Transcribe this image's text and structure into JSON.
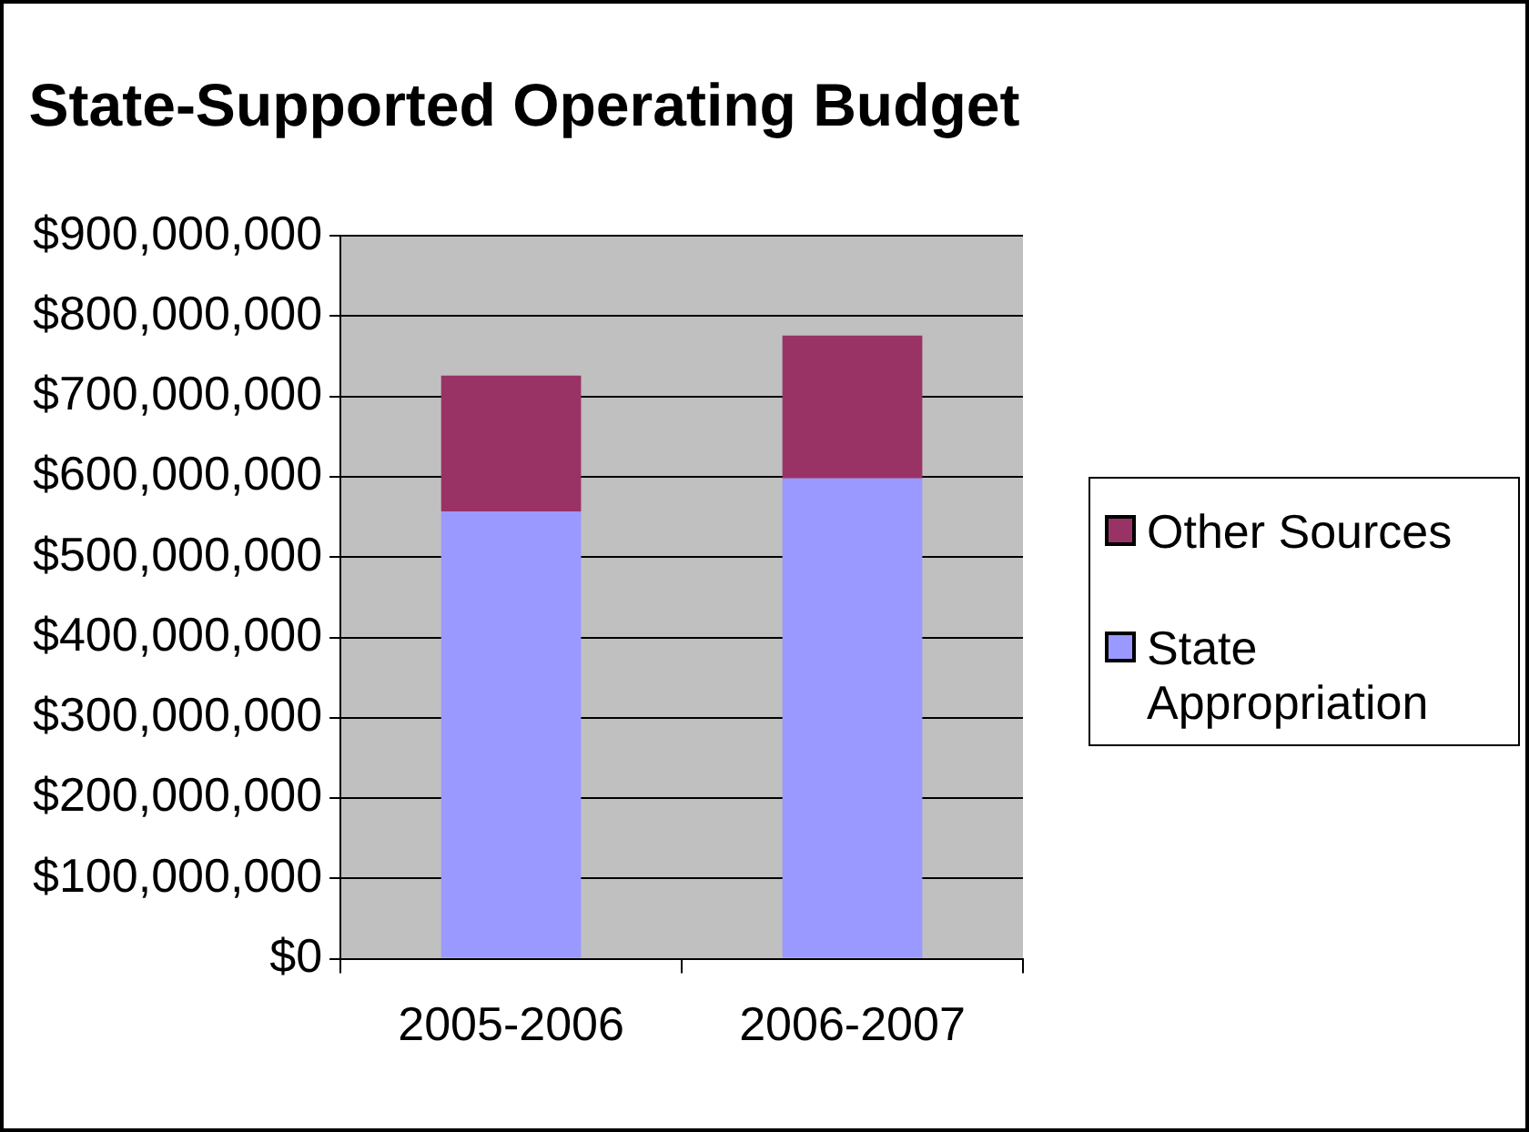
{
  "chart_data": {
    "type": "bar",
    "title": "State-Supported Operating Budget",
    "categories": [
      "2005-2006",
      "2006-2007"
    ],
    "series": [
      {
        "name": "State Appropriation",
        "color": "#9999ff",
        "values": [
          557000000,
          598000000
        ]
      },
      {
        "name": "Other Sources",
        "color": "#993366",
        "values": [
          169000000,
          178000000
        ]
      }
    ],
    "stacked": true,
    "ylim": [
      0,
      900000000
    ],
    "yticks": [
      {
        "value": 0,
        "label": "$0"
      },
      {
        "value": 100000000,
        "label": "$100,000,000"
      },
      {
        "value": 200000000,
        "label": "$200,000,000"
      },
      {
        "value": 300000000,
        "label": "$300,000,000"
      },
      {
        "value": 400000000,
        "label": "$400,000,000"
      },
      {
        "value": 500000000,
        "label": "$500,000,000"
      },
      {
        "value": 600000000,
        "label": "$600,000,000"
      },
      {
        "value": 700000000,
        "label": "$700,000,000"
      },
      {
        "value": 800000000,
        "label": "$800,000,000"
      },
      {
        "value": 900000000,
        "label": "$900,000,000"
      }
    ],
    "grid": "y",
    "legend": "right"
  }
}
